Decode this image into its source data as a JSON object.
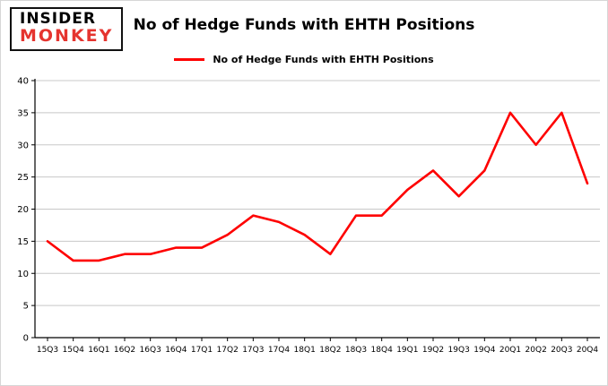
{
  "logo": {
    "line1": "INSIDER",
    "line2": "MONKEY"
  },
  "title": "No of Hedge Funds with EHTH Positions",
  "legend": {
    "label": "No of Hedge Funds with EHTH Positions",
    "color": "#fe0000"
  },
  "chart_data": {
    "type": "line",
    "title": "No of Hedge Funds with EHTH Positions",
    "categories": [
      "15Q3",
      "15Q4",
      "16Q1",
      "16Q2",
      "16Q3",
      "16Q4",
      "17Q1",
      "17Q2",
      "17Q3",
      "17Q4",
      "18Q1",
      "18Q2",
      "18Q3",
      "18Q4",
      "19Q1",
      "19Q2",
      "19Q3",
      "19Q4",
      "20Q1",
      "20Q2",
      "20Q3",
      "20Q4"
    ],
    "values": [
      15,
      12,
      12,
      13,
      13,
      14,
      14,
      16,
      19,
      18,
      16,
      13,
      19,
      19,
      23,
      26,
      22,
      26,
      35,
      30,
      35,
      24
    ],
    "xlabel": "",
    "ylabel": "",
    "ylim": [
      0,
      40
    ],
    "yticks": [
      0,
      5,
      10,
      15,
      20,
      25,
      30,
      35,
      40
    ],
    "grid": true,
    "grid_color": "#c8c8c8",
    "line_color": "#fe0000",
    "axis_color": "#000000",
    "legend_position": "top-center"
  }
}
